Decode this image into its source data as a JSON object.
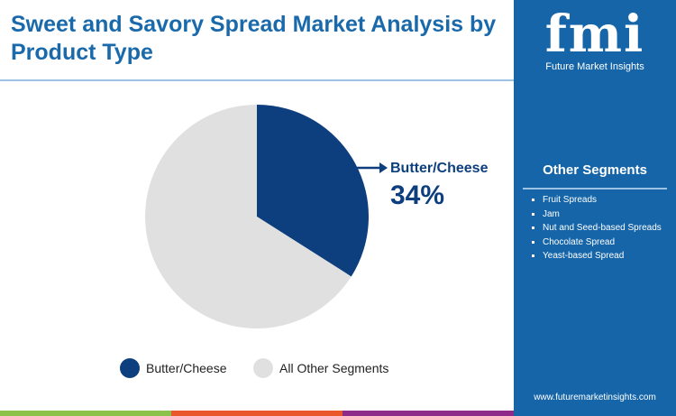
{
  "title": "Sweet and Savory Spread Market Analysis by Product Type",
  "brand": {
    "logo_text": "fmi",
    "name": "Future Market Insights",
    "url": "www.futuremarketinsights.com"
  },
  "other_segments": {
    "heading": "Other Segments",
    "items": [
      "Fruit Spreads",
      "Jam",
      "Nut and Seed-based Spreads",
      "Chocolate Spread",
      "Yeast-based Spread"
    ]
  },
  "colors": {
    "accent": "#0d3f7f",
    "other": "#e0e0e0",
    "panel": "#1565a8"
  },
  "chart_data": {
    "type": "pie",
    "categories": [
      "Butter/Cheese",
      "All Other Segments"
    ],
    "values": [
      34,
      66
    ],
    "colors": [
      "#0d3f7f",
      "#e0e0e0"
    ],
    "callout": {
      "label": "Butter/Cheese",
      "value": "34%"
    },
    "legend": "bottom"
  }
}
